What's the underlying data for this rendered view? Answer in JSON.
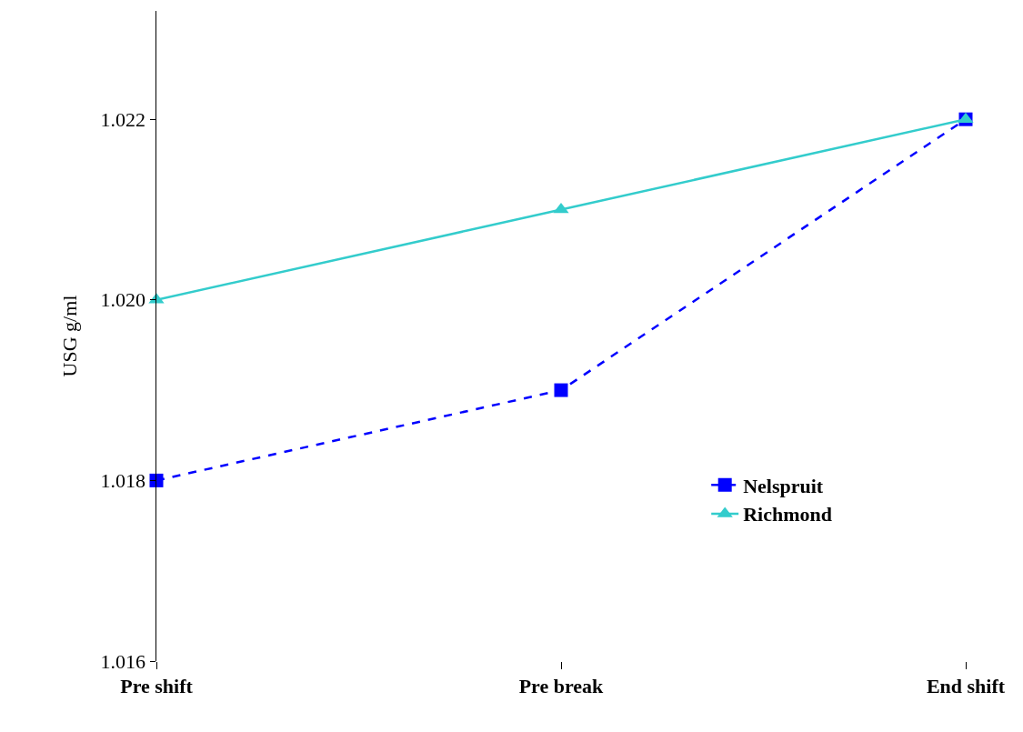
{
  "chart_data": {
    "type": "line",
    "ylabel": "USG g/ml",
    "categories": [
      "Pre shift",
      "Pre break",
      "End shift"
    ],
    "series": [
      {
        "name": "Nelspruit",
        "color": "#0000ff",
        "marker": "square",
        "line_style": "dashed",
        "values": [
          1.018,
          1.019,
          1.022
        ]
      },
      {
        "name": "Richmond",
        "color": "#33cccc",
        "marker": "triangle",
        "line_style": "solid",
        "values": [
          1.02,
          1.021,
          1.022
        ]
      }
    ],
    "ylim": [
      1.016,
      1.0232
    ],
    "yticks": [
      {
        "value": 1.016,
        "label": "1.016"
      },
      {
        "value": 1.018,
        "label": "1.018"
      },
      {
        "value": 1.02,
        "label": "1.020"
      },
      {
        "value": 1.022,
        "label": "1.022"
      }
    ],
    "grid": false,
    "legend": "bottom right"
  }
}
